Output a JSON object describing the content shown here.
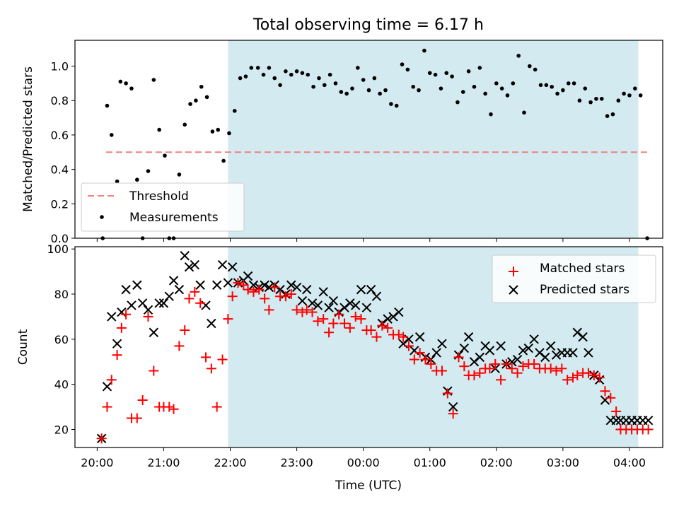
{
  "chart_data": [
    {
      "type": "scatter",
      "title": "Total observing time = 6.17 h",
      "xlabel": "",
      "ylabel": "Matched/Predicted stars",
      "xlim": [
        "19:40",
        "04:30"
      ],
      "ylim": [
        0,
        1.15
      ],
      "yticks": [
        "0.0",
        "0.2",
        "0.4",
        "0.6",
        "0.8",
        "1.0"
      ],
      "legend": "lower-left",
      "shaded_window": [
        "21:58",
        "04:08"
      ],
      "shade_color": "#d2eaf0",
      "threshold": {
        "name": "Threshold",
        "y": 0.5,
        "x_range": [
          "20:08",
          "04:18"
        ],
        "color": "#f08080"
      },
      "series": [
        {
          "name": "Measurements",
          "color": "#000000",
          "points": [
            [
              "20:05",
              0.0
            ],
            [
              "20:09",
              0.77
            ],
            [
              "20:13",
              0.6
            ],
            [
              "20:18",
              0.33
            ],
            [
              "20:21",
              0.91
            ],
            [
              "20:26",
              0.9
            ],
            [
              "20:31",
              0.87
            ],
            [
              "20:36",
              0.34
            ],
            [
              "20:41",
              0.0
            ],
            [
              "20:46",
              0.39
            ],
            [
              "20:51",
              0.92
            ],
            [
              "20:56",
              0.63
            ],
            [
              "21:01",
              0.48
            ],
            [
              "21:05",
              0.0
            ],
            [
              "21:09",
              0.0
            ],
            [
              "21:14",
              0.37
            ],
            [
              "21:19",
              0.66
            ],
            [
              "21:24",
              0.78
            ],
            [
              "21:29",
              0.8
            ],
            [
              "21:34",
              0.88
            ],
            [
              "21:39",
              0.82
            ],
            [
              "21:44",
              0.62
            ],
            [
              "21:49",
              0.63
            ],
            [
              "21:54",
              0.45
            ],
            [
              "21:59",
              0.61
            ],
            [
              "22:04",
              0.74
            ],
            [
              "22:09",
              0.93
            ],
            [
              "22:14",
              0.94
            ],
            [
              "22:19",
              0.99
            ],
            [
              "22:25",
              0.99
            ],
            [
              "22:30",
              0.95
            ],
            [
              "22:35",
              0.99
            ],
            [
              "22:40",
              0.93
            ],
            [
              "22:45",
              0.89
            ],
            [
              "22:50",
              0.97
            ],
            [
              "22:55",
              0.95
            ],
            [
              "23:00",
              0.97
            ],
            [
              "23:05",
              0.96
            ],
            [
              "23:10",
              0.95
            ],
            [
              "23:15",
              0.88
            ],
            [
              "23:20",
              0.93
            ],
            [
              "23:25",
              0.89
            ],
            [
              "23:30",
              0.95
            ],
            [
              "23:35",
              0.9
            ],
            [
              "23:40",
              0.85
            ],
            [
              "23:45",
              0.84
            ],
            [
              "23:50",
              0.87
            ],
            [
              "23:55",
              0.99
            ],
            [
              "00:00",
              0.92
            ],
            [
              "00:05",
              0.86
            ],
            [
              "00:10",
              0.93
            ],
            [
              "00:15",
              0.84
            ],
            [
              "00:20",
              0.86
            ],
            [
              "00:25",
              0.78
            ],
            [
              "00:30",
              0.77
            ],
            [
              "00:35",
              1.01
            ],
            [
              "00:40",
              0.98
            ],
            [
              "00:45",
              0.88
            ],
            [
              "00:50",
              0.86
            ],
            [
              "00:55",
              1.09
            ],
            [
              "01:00",
              0.96
            ],
            [
              "01:05",
              0.95
            ],
            [
              "01:10",
              0.87
            ],
            [
              "01:15",
              0.96
            ],
            [
              "01:20",
              0.94
            ],
            [
              "01:25",
              0.79
            ],
            [
              "01:30",
              0.85
            ],
            [
              "01:35",
              0.97
            ],
            [
              "01:40",
              0.88
            ],
            [
              "01:45",
              0.99
            ],
            [
              "01:50",
              0.84
            ],
            [
              "01:55",
              0.72
            ],
            [
              "02:00",
              0.9
            ],
            [
              "02:05",
              0.87
            ],
            [
              "02:10",
              0.83
            ],
            [
              "02:15",
              0.9
            ],
            [
              "02:20",
              1.06
            ],
            [
              "02:25",
              0.73
            ],
            [
              "02:30",
              1.0
            ],
            [
              "02:35",
              0.98
            ],
            [
              "02:40",
              0.89
            ],
            [
              "02:45",
              0.89
            ],
            [
              "02:50",
              0.88
            ],
            [
              "02:55",
              0.84
            ],
            [
              "03:00",
              0.86
            ],
            [
              "03:05",
              0.9
            ],
            [
              "03:10",
              0.9
            ],
            [
              "03:15",
              0.8
            ],
            [
              "03:20",
              0.87
            ],
            [
              "03:25",
              0.79
            ],
            [
              "03:30",
              0.81
            ],
            [
              "03:35",
              0.81
            ],
            [
              "03:40",
              0.71
            ],
            [
              "03:45",
              0.72
            ],
            [
              "03:50",
              0.8
            ],
            [
              "03:55",
              0.84
            ],
            [
              "04:00",
              0.83
            ],
            [
              "04:05",
              0.87
            ],
            [
              "04:10",
              0.83
            ],
            [
              "04:16",
              0.0
            ]
          ]
        }
      ]
    },
    {
      "type": "scatter",
      "title": "",
      "xlabel": "Time (UTC)",
      "ylabel": "Count",
      "xlim": [
        "19:40",
        "04:30"
      ],
      "ylim": [
        12,
        101
      ],
      "xticks": [
        "20:00",
        "21:00",
        "22:00",
        "23:00",
        "00:00",
        "01:00",
        "02:00",
        "03:00",
        "04:00"
      ],
      "yticks": [
        "20",
        "40",
        "60",
        "80",
        "100"
      ],
      "legend": "top-right",
      "shaded_window": [
        "21:58",
        "04:08"
      ],
      "shade_color": "#d2eaf0",
      "x": [
        "20:04",
        "20:09",
        "20:13",
        "20:18",
        "20:22",
        "20:26",
        "20:31",
        "20:36",
        "20:41",
        "20:46",
        "20:51",
        "20:56",
        "21:00",
        "21:05",
        "21:09",
        "21:14",
        "21:19",
        "21:23",
        "21:28",
        "21:33",
        "21:38",
        "21:43",
        "21:48",
        "21:53",
        "21:58",
        "22:02",
        "22:07",
        "22:12",
        "22:16",
        "22:21",
        "22:26",
        "22:31",
        "22:35",
        "22:40",
        "22:45",
        "22:50",
        "22:55",
        "23:00",
        "23:05",
        "23:09",
        "23:14",
        "23:19",
        "23:24",
        "23:29",
        "23:33",
        "23:38",
        "23:43",
        "23:48",
        "23:53",
        "23:58",
        "00:03",
        "00:07",
        "00:12",
        "00:17",
        "00:22",
        "00:27",
        "00:32",
        "00:36",
        "00:41",
        "00:46",
        "00:51",
        "00:56",
        "01:01",
        "01:06",
        "01:11",
        "01:16",
        "01:21",
        "01:26",
        "01:31",
        "01:35",
        "01:40",
        "01:45",
        "01:50",
        "01:54",
        "01:59",
        "02:04",
        "02:09",
        "02:14",
        "02:19",
        "02:24",
        "02:29",
        "02:34",
        "02:39",
        "02:44",
        "02:49",
        "02:54",
        "02:59",
        "03:04",
        "03:09",
        "03:13",
        "03:18",
        "03:23",
        "03:28",
        "03:33",
        "03:38",
        "03:43",
        "03:48",
        "03:52",
        "03:57",
        "04:02",
        "04:07",
        "04:12",
        "04:17"
      ],
      "series": [
        {
          "name": "Matched stars",
          "color": "#ff0000",
          "marker": "plus",
          "values": [
            16,
            30,
            42,
            53,
            65,
            71,
            25,
            25,
            33,
            70,
            46,
            30,
            30,
            30,
            29,
            57,
            64,
            78,
            81,
            76,
            52,
            47,
            30,
            51,
            69,
            79,
            85,
            84,
            82,
            81,
            82,
            78,
            73,
            83,
            79,
            79,
            80,
            73,
            72,
            73,
            72,
            68,
            69,
            63,
            67,
            71,
            67,
            65,
            70,
            69,
            64,
            64,
            61,
            66,
            65,
            62,
            62,
            61,
            57,
            51,
            54,
            51,
            49,
            46,
            46,
            36,
            27,
            52,
            48,
            44,
            44,
            45,
            47,
            47,
            49,
            42,
            49,
            47,
            45,
            48,
            49,
            49,
            47,
            47,
            47,
            46,
            47,
            42,
            43,
            44,
            45,
            45,
            44,
            43,
            37,
            34,
            28,
            20,
            20,
            20,
            20,
            20,
            20
          ]
        },
        {
          "name": "Predicted stars",
          "color": "#000000",
          "marker": "x",
          "values": [
            16,
            39,
            70,
            58,
            72,
            82,
            75,
            84,
            76,
            73,
            63,
            76,
            76,
            79,
            86,
            82,
            97,
            92,
            93,
            84,
            75,
            67,
            84,
            93,
            85,
            92,
            85,
            86,
            88,
            84,
            83,
            84,
            83,
            84,
            82,
            80,
            84,
            83,
            77,
            82,
            76,
            75,
            81,
            74,
            77,
            72,
            74,
            76,
            75,
            82,
            74,
            82,
            79,
            67,
            69,
            70,
            72,
            58,
            60,
            55,
            61,
            52,
            51,
            54,
            58,
            37,
            30,
            53,
            56,
            61,
            50,
            52,
            57,
            55,
            47,
            57,
            49,
            50,
            51,
            55,
            56,
            60,
            54,
            52,
            57,
            53,
            54,
            54,
            54,
            63,
            61,
            54,
            44,
            42,
            33,
            24,
            24,
            24,
            24,
            24,
            24,
            24,
            24
          ]
        }
      ]
    }
  ]
}
